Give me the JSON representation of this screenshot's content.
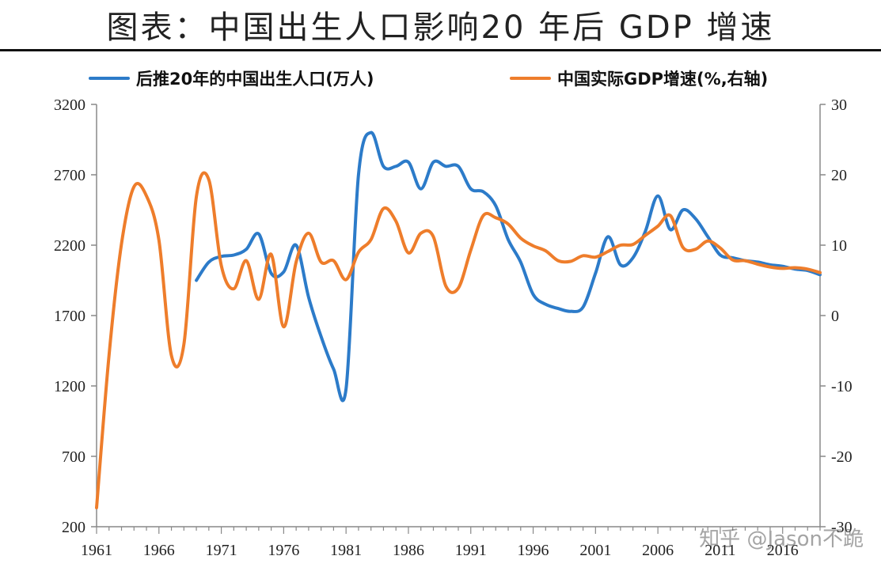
{
  "header": {
    "title": "图表：中国出生人口影响20 年后 GDP 增速"
  },
  "legend": {
    "population_label": "后推20年的中国出生人口(万人)",
    "gdp_label": "中国实际GDP增速(%,右轴)"
  },
  "watermark": "知乎 @Jason不跪",
  "colors": {
    "population": "#2c7bc9",
    "gdp": "#ee7d2b",
    "axis": "#888888"
  },
  "chart_data": {
    "type": "line",
    "left_axis": {
      "ticks": [
        200,
        700,
        1200,
        1700,
        2200,
        2700,
        3200
      ],
      "range": [
        200,
        3200
      ]
    },
    "right_axis": {
      "ticks": [
        -30,
        -20,
        -10,
        0,
        10,
        20,
        30
      ],
      "range": [
        -30,
        30
      ]
    },
    "x_range": [
      1961,
      2019
    ],
    "x_ticks": [
      1961,
      1966,
      1971,
      1976,
      1981,
      1986,
      1991,
      1996,
      2001,
      2006,
      2011,
      2016
    ],
    "grid": false,
    "legend_position": "top",
    "series": [
      {
        "name": "后推20年的中国出生人口(万人)",
        "axis": "left",
        "x": [
          1969,
          1970,
          1971,
          1972,
          1973,
          1974,
          1975,
          1976,
          1977,
          1978,
          1979,
          1980,
          1981,
          1982,
          1983,
          1984,
          1985,
          1986,
          1987,
          1988,
          1989,
          1990,
          1991,
          1992,
          1993,
          1994,
          1995,
          1996,
          1997,
          1998,
          1999,
          2000,
          2001,
          2002,
          2003,
          2004,
          2005,
          2006,
          2007,
          2008,
          2009,
          2010,
          2011,
          2012,
          2013,
          2014,
          2015,
          2016,
          2017,
          2018,
          2019
        ],
        "y": [
          1950,
          2080,
          2120,
          2130,
          2170,
          2280,
          2000,
          2010,
          2200,
          1830,
          1550,
          1320,
          1180,
          2700,
          3000,
          2760,
          2760,
          2790,
          2600,
          2790,
          2760,
          2760,
          2600,
          2580,
          2480,
          2240,
          2080,
          1850,
          1780,
          1750,
          1730,
          1760,
          2000,
          2260,
          2060,
          2110,
          2300,
          2550,
          2310,
          2450,
          2390,
          2260,
          2130,
          2110,
          2090,
          2080,
          2060,
          2050,
          2030,
          2020,
          1990
        ]
      },
      {
        "name": "中国实际GDP增速(%,右轴)",
        "axis": "right",
        "x": [
          1961,
          1962,
          1963,
          1964,
          1965,
          1966,
          1967,
          1968,
          1969,
          1970,
          1971,
          1972,
          1973,
          1974,
          1975,
          1976,
          1977,
          1978,
          1979,
          1980,
          1981,
          1982,
          1983,
          1984,
          1985,
          1986,
          1987,
          1988,
          1989,
          1990,
          1991,
          1992,
          1993,
          1994,
          1995,
          1996,
          1997,
          1998,
          1999,
          2000,
          2001,
          2002,
          2003,
          2004,
          2005,
          2006,
          2007,
          2008,
          2009,
          2010,
          2011,
          2012,
          2013,
          2014,
          2015,
          2016,
          2017,
          2018,
          2019
        ],
        "y": [
          -27.3,
          -5.6,
          10.2,
          18.3,
          17.0,
          10.7,
          -5.7,
          -4.1,
          16.9,
          19.3,
          7.1,
          3.8,
          7.8,
          2.3,
          8.7,
          -1.6,
          7.6,
          11.7,
          7.6,
          7.8,
          5.1,
          9.0,
          10.8,
          15.2,
          13.4,
          8.9,
          11.7,
          11.2,
          4.2,
          3.9,
          9.3,
          14.2,
          13.9,
          13.0,
          11.0,
          9.9,
          9.2,
          7.8,
          7.7,
          8.5,
          8.3,
          9.1,
          10.0,
          10.1,
          11.4,
          12.7,
          14.2,
          9.7,
          9.4,
          10.6,
          9.6,
          7.9,
          7.8,
          7.3,
          6.9,
          6.7,
          6.8,
          6.6,
          6.1
        ]
      }
    ]
  }
}
